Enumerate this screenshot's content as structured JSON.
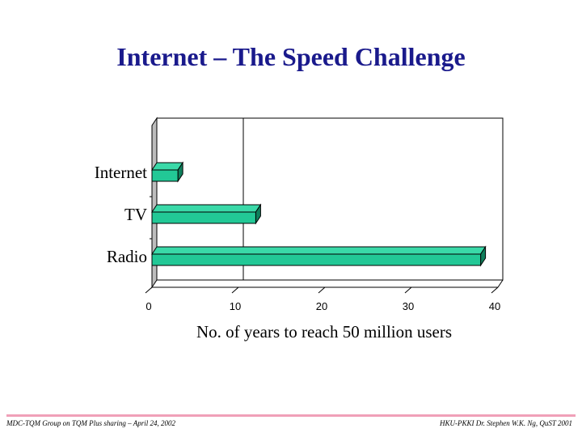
{
  "slide": {
    "title": "Internet – The Speed Challenge"
  },
  "chart_data": {
    "type": "bar",
    "orientation": "horizontal",
    "categories": [
      "Internet",
      "TV",
      "Radio"
    ],
    "values": [
      3,
      12,
      38
    ],
    "xlabel": "No. of years to reach 50 million users",
    "xlim": [
      0,
      40
    ],
    "xticks": [
      0,
      10,
      20,
      30,
      40
    ],
    "grid": "vertical line at 10",
    "style": "3d",
    "bar_color": "#22c896"
  },
  "footer": {
    "left": "MDC-TQM Group on TQM Plus sharing – April 24, 2002",
    "right": "HKU-PKKI  Dr. Stephen W.K. Ng, QuST 2001"
  },
  "colors": {
    "title": "#1a1a8c",
    "bar_face": "#22c896",
    "bar_top": "#3ad9a8",
    "bar_side": "#0f7f5c",
    "footer_rule": "#f0a0b8"
  }
}
